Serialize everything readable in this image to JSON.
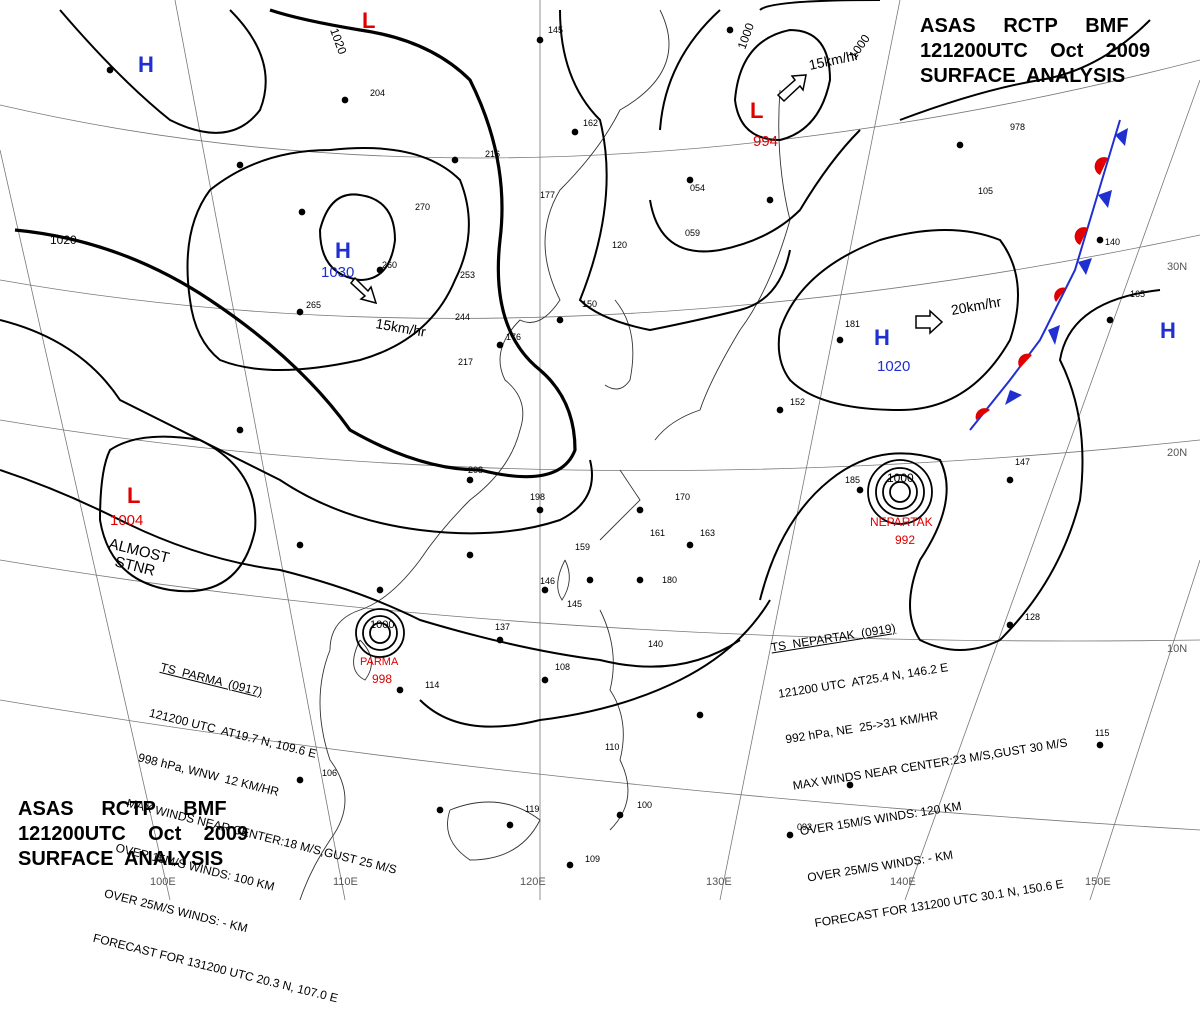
{
  "header": {
    "line1": "ASAS     RCTP     BMF",
    "line2": "121200UTC    Oct    2009",
    "line3": "SURFACE  ANALYSIS"
  },
  "footer_title": {
    "line1": "ASAS     RCTP     BMF",
    "line2": "121200UTC    Oct    2009",
    "line3": "SURFACE  ANALYSIS"
  },
  "colors": {
    "high": "#1f2fd0",
    "low": "#e00000",
    "cold_front": "#1f2fd0",
    "warm_front": "#e00000"
  },
  "pressure_centers": [
    {
      "type": "H",
      "value": "",
      "kind": "high",
      "id": "high-northwest"
    },
    {
      "type": "L",
      "value": "",
      "kind": "low",
      "id": "low-north"
    },
    {
      "type": "H",
      "value": "1030",
      "kind": "high",
      "id": "high-mongolia"
    },
    {
      "type": "L",
      "value": "994",
      "kind": "low",
      "id": "low-japan-sea"
    },
    {
      "type": "H",
      "value": "1020",
      "kind": "high",
      "id": "high-pacific"
    },
    {
      "type": "L",
      "value": "1004",
      "kind": "low",
      "id": "low-tibet"
    },
    {
      "type": "H",
      "value": "",
      "kind": "high",
      "id": "high-east-edge"
    }
  ],
  "storms": [
    {
      "name": "PARMA",
      "pressure": "998",
      "label": "1000"
    },
    {
      "name": "NEPARTAK",
      "pressure": "992",
      "label": "1000"
    }
  ],
  "isobar_labels": [
    "1020",
    "1020",
    "1000",
    "1000"
  ],
  "motion_labels": [
    "15km/hr",
    "15km/hr",
    "20km/hr"
  ],
  "almost_stnr": {
    "line1": "ALMOST",
    "line2": "STNR"
  },
  "lon_labels": [
    "100E",
    "110E",
    "120E",
    "130E",
    "140E",
    "150E"
  ],
  "lat_labels": [
    "30N",
    "20N",
    "10N"
  ],
  "stations": [
    "145",
    "162",
    "216",
    "204",
    "270",
    "260",
    "253",
    "244",
    "217",
    "265",
    "177",
    "176",
    "150",
    "120",
    "054",
    "059",
    "978",
    "105",
    "181",
    "165",
    "140",
    "152",
    "147",
    "185",
    "208",
    "198",
    "170",
    "161",
    "159",
    "163",
    "146",
    "145",
    "180",
    "137",
    "140",
    "114",
    "108",
    "106",
    "110",
    "092",
    "115",
    "128",
    "119",
    "109",
    "100"
  ],
  "parma_bulletin": {
    "l1": "TS  PARMA  (0917)",
    "l2": "121200 UTC  AT19.7 N, 109.6 E",
    "l3": "998 hPa, WNW  12 KM/HR",
    "l4": "MAX WINDS NEAR CENTER:18 M/S,GUST 25 M/S",
    "l5": "OVER 15M/S WINDS: 100 KM",
    "l6": "OVER 25M/S WINDS: - KM",
    "l7": "FORECAST FOR 131200 UTC 20.3 N, 107.0 E"
  },
  "nepartak_bulletin": {
    "l1": "TS  NEPARTAK  (0919)",
    "l2": "121200 UTC  AT25.4 N, 146.2 E",
    "l3": "992 hPa, NE  25->31 KM/HR",
    "l4": "MAX WINDS NEAR CENTER:23 M/S,GUST 30 M/S",
    "l5": "OVER 15M/S WINDS: 120 KM",
    "l6": "OVER 25M/S WINDS: - KM",
    "l7": "FORECAST FOR 131200 UTC 30.1 N, 150.6 E"
  }
}
